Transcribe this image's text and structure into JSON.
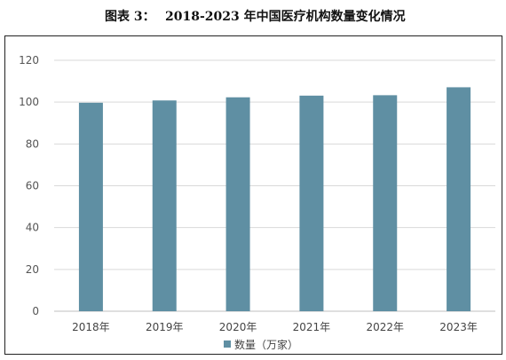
{
  "figure": {
    "label": "图表 3：",
    "title": "2018-2023 年中国医疗机构数量变化情况"
  },
  "chart_data": {
    "type": "bar",
    "categories": [
      "2018年",
      "2019年",
      "2020年",
      "2021年",
      "2022年",
      "2023年"
    ],
    "series": [
      {
        "name": "数量（万家）",
        "values": [
          99.7,
          100.8,
          102.3,
          103.1,
          103.3,
          107.1
        ]
      }
    ],
    "title": "",
    "xlabel": "",
    "ylabel": "",
    "ylim": [
      0,
      120
    ],
    "yticks": [
      0,
      20,
      40,
      60,
      80,
      100,
      120
    ],
    "grid": true,
    "legend": "bottom",
    "colors": {
      "bar": "#5f8fa3",
      "grid": "#d9d9d9",
      "axis": "#bfbfbf"
    }
  }
}
